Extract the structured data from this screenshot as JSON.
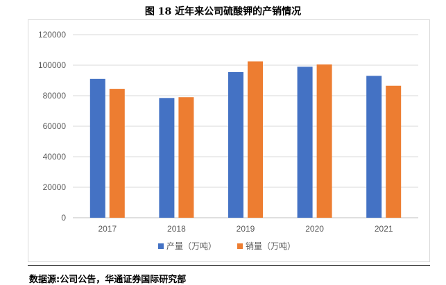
{
  "chart_data": {
    "type": "bar",
    "title": "图 18 近年来公司硫酸钾的产销情况",
    "categories": [
      "2017",
      "2018",
      "2019",
      "2020",
      "2021"
    ],
    "series": [
      {
        "name": "产量（万吨）",
        "values": [
          91000,
          78500,
          95500,
          99000,
          93000
        ],
        "color": "#4472c4"
      },
      {
        "name": "销量（万吨）",
        "values": [
          84500,
          79000,
          102500,
          100500,
          86500
        ],
        "color": "#ed7d31"
      }
    ],
    "ylim": [
      0,
      120000
    ],
    "yticks": [
      0,
      20000,
      40000,
      60000,
      80000,
      100000,
      120000
    ],
    "grid": true,
    "legend": "bottom"
  },
  "source": "数据源:公司公告，华通证券国际研究部"
}
